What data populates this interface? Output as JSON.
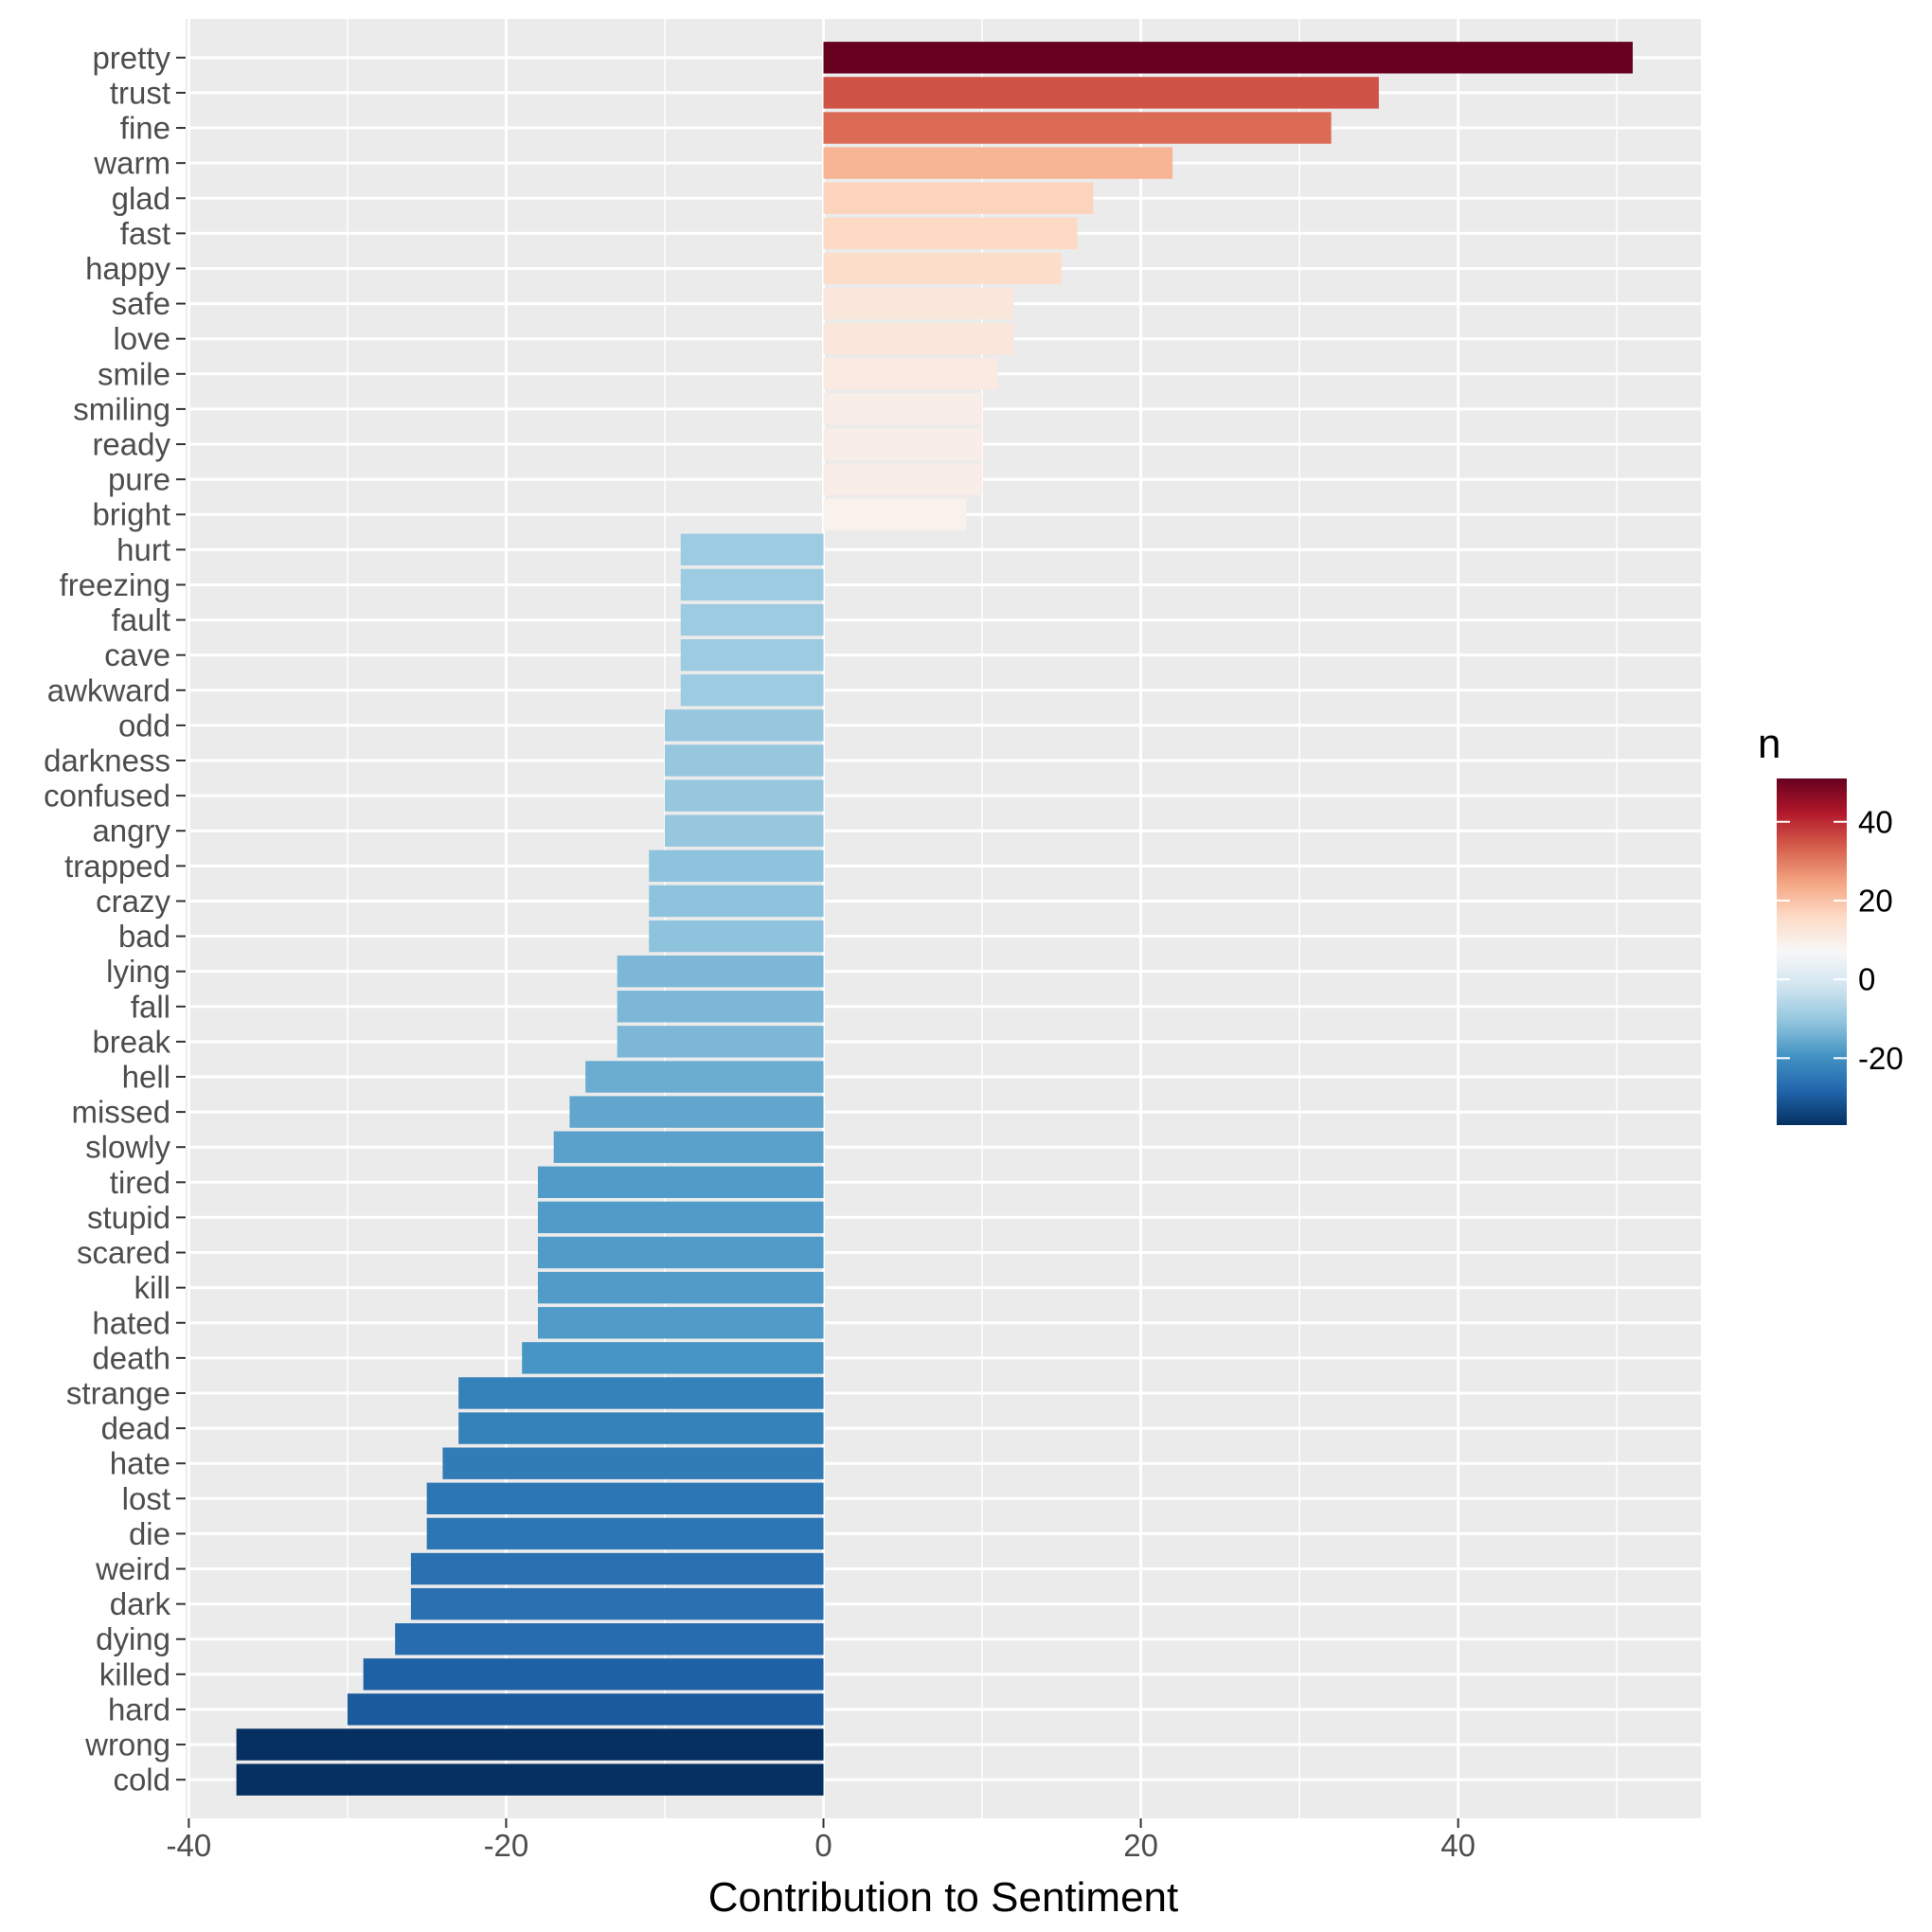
{
  "chart_data": {
    "type": "bar",
    "orientation": "horizontal",
    "xlabel": "Contribution to Sentiment",
    "ylabel": "",
    "xlim": [
      -40.2,
      55.3
    ],
    "x_ticks": [
      -40,
      -20,
      0,
      20,
      40
    ],
    "x_tick_labels": [
      "-40",
      "-20",
      "0",
      "20",
      "40"
    ],
    "grid": true,
    "categories": [
      "pretty",
      "trust",
      "fine",
      "warm",
      "glad",
      "fast",
      "happy",
      "safe",
      "love",
      "smile",
      "smiling",
      "ready",
      "pure",
      "bright",
      "hurt",
      "freezing",
      "fault",
      "cave",
      "awkward",
      "odd",
      "darkness",
      "confused",
      "angry",
      "trapped",
      "crazy",
      "bad",
      "lying",
      "fall",
      "break",
      "hell",
      "missed",
      "slowly",
      "tired",
      "stupid",
      "scared",
      "kill",
      "hated",
      "death",
      "strange",
      "dead",
      "hate",
      "lost",
      "die",
      "weird",
      "dark",
      "dying",
      "killed",
      "hard",
      "wrong",
      "cold"
    ],
    "values": [
      51,
      35,
      32,
      22,
      17,
      16,
      15,
      12,
      12,
      11,
      10,
      10,
      10,
      9,
      -9,
      -9,
      -9,
      -9,
      -9,
      -10,
      -10,
      -10,
      -10,
      -11,
      -11,
      -11,
      -13,
      -13,
      -13,
      -15,
      -16,
      -17,
      -18,
      -18,
      -18,
      -18,
      -18,
      -19,
      -23,
      -23,
      -24,
      -25,
      -25,
      -26,
      -26,
      -27,
      -29,
      -30,
      -37,
      -37
    ],
    "legend": {
      "title": "n",
      "position": "right",
      "range": [
        -37,
        51
      ],
      "ticks": [
        40,
        20,
        0,
        -20
      ],
      "tick_labels": [
        "40",
        "20",
        "0",
        "-20"
      ],
      "colors": [
        "#053061",
        "#2166ac",
        "#4393c3",
        "#92c5de",
        "#d1e5f0",
        "#f7f7f7",
        "#fddbc7",
        "#f4a582",
        "#d6604d",
        "#b2182b",
        "#67001f"
      ]
    }
  }
}
